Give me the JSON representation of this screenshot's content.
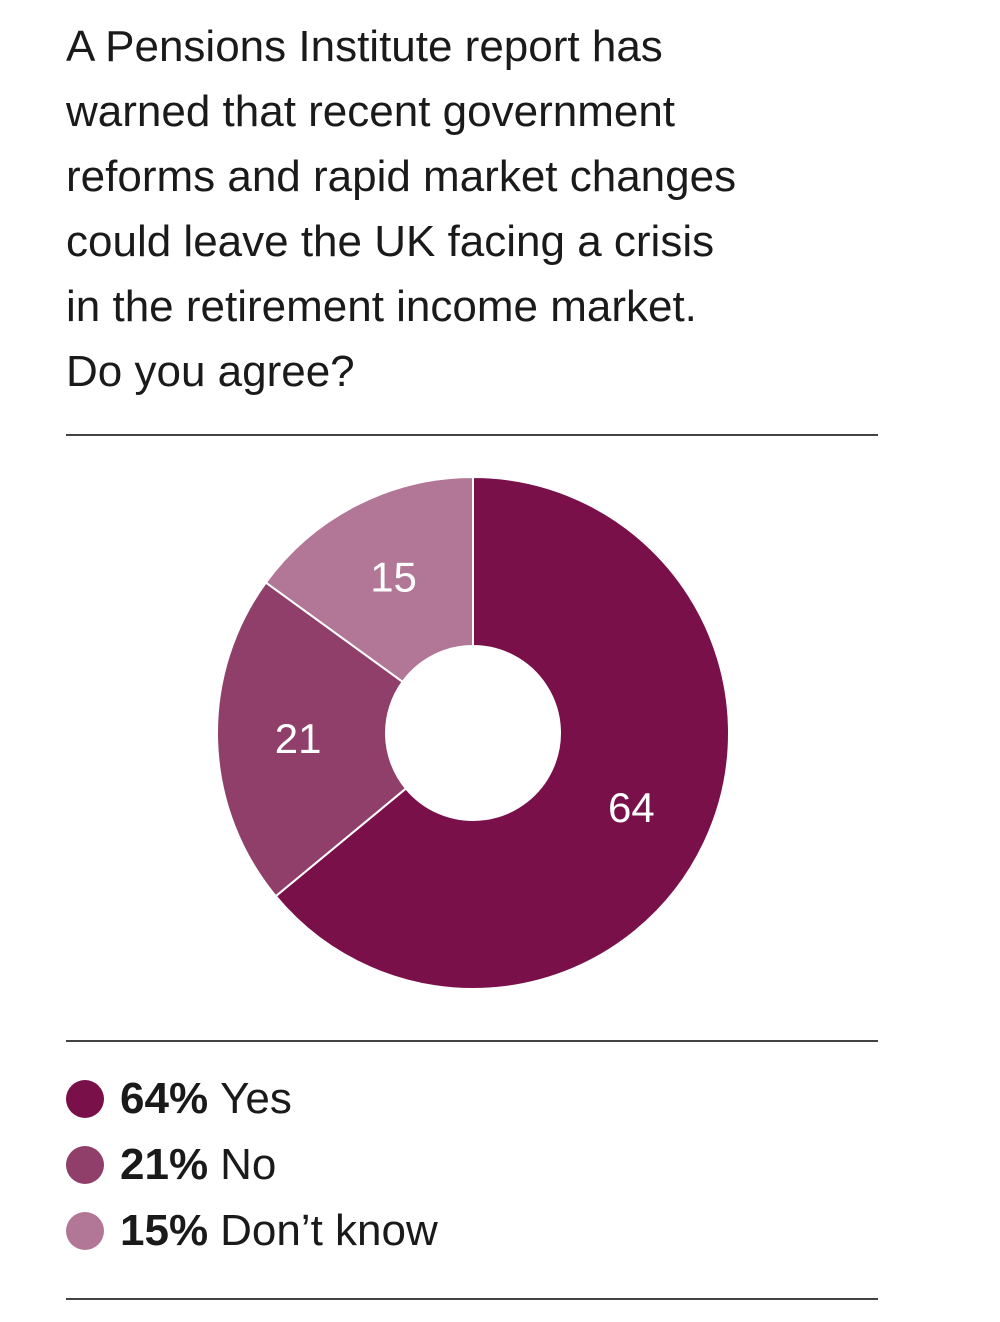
{
  "question": "A Pensions Institute report has\nwarned that recent government\nreforms and rapid market changes\ncould leave the UK facing a crisis\nin the retirement income market.\nDo you agree?",
  "chart_data": {
    "type": "pie",
    "style": "donut",
    "title": "",
    "categories": [
      "Yes",
      "No",
      "Don’t know"
    ],
    "values": [
      64,
      21,
      15
    ],
    "slice_labels": [
      "64",
      "21",
      "15"
    ],
    "colors": [
      "#7a104a",
      "#8f3f69",
      "#b27796"
    ],
    "start_angle": "12 o'clock",
    "direction": "clockwise",
    "legend_position": "bottom"
  },
  "legend": [
    {
      "pct": "64%",
      "label": "Yes",
      "color": "#7a104a"
    },
    {
      "pct": "21%",
      "label": "No",
      "color": "#8f3f69"
    },
    {
      "pct": "15%",
      "label": "Don’t know",
      "color": "#b27796"
    }
  ]
}
